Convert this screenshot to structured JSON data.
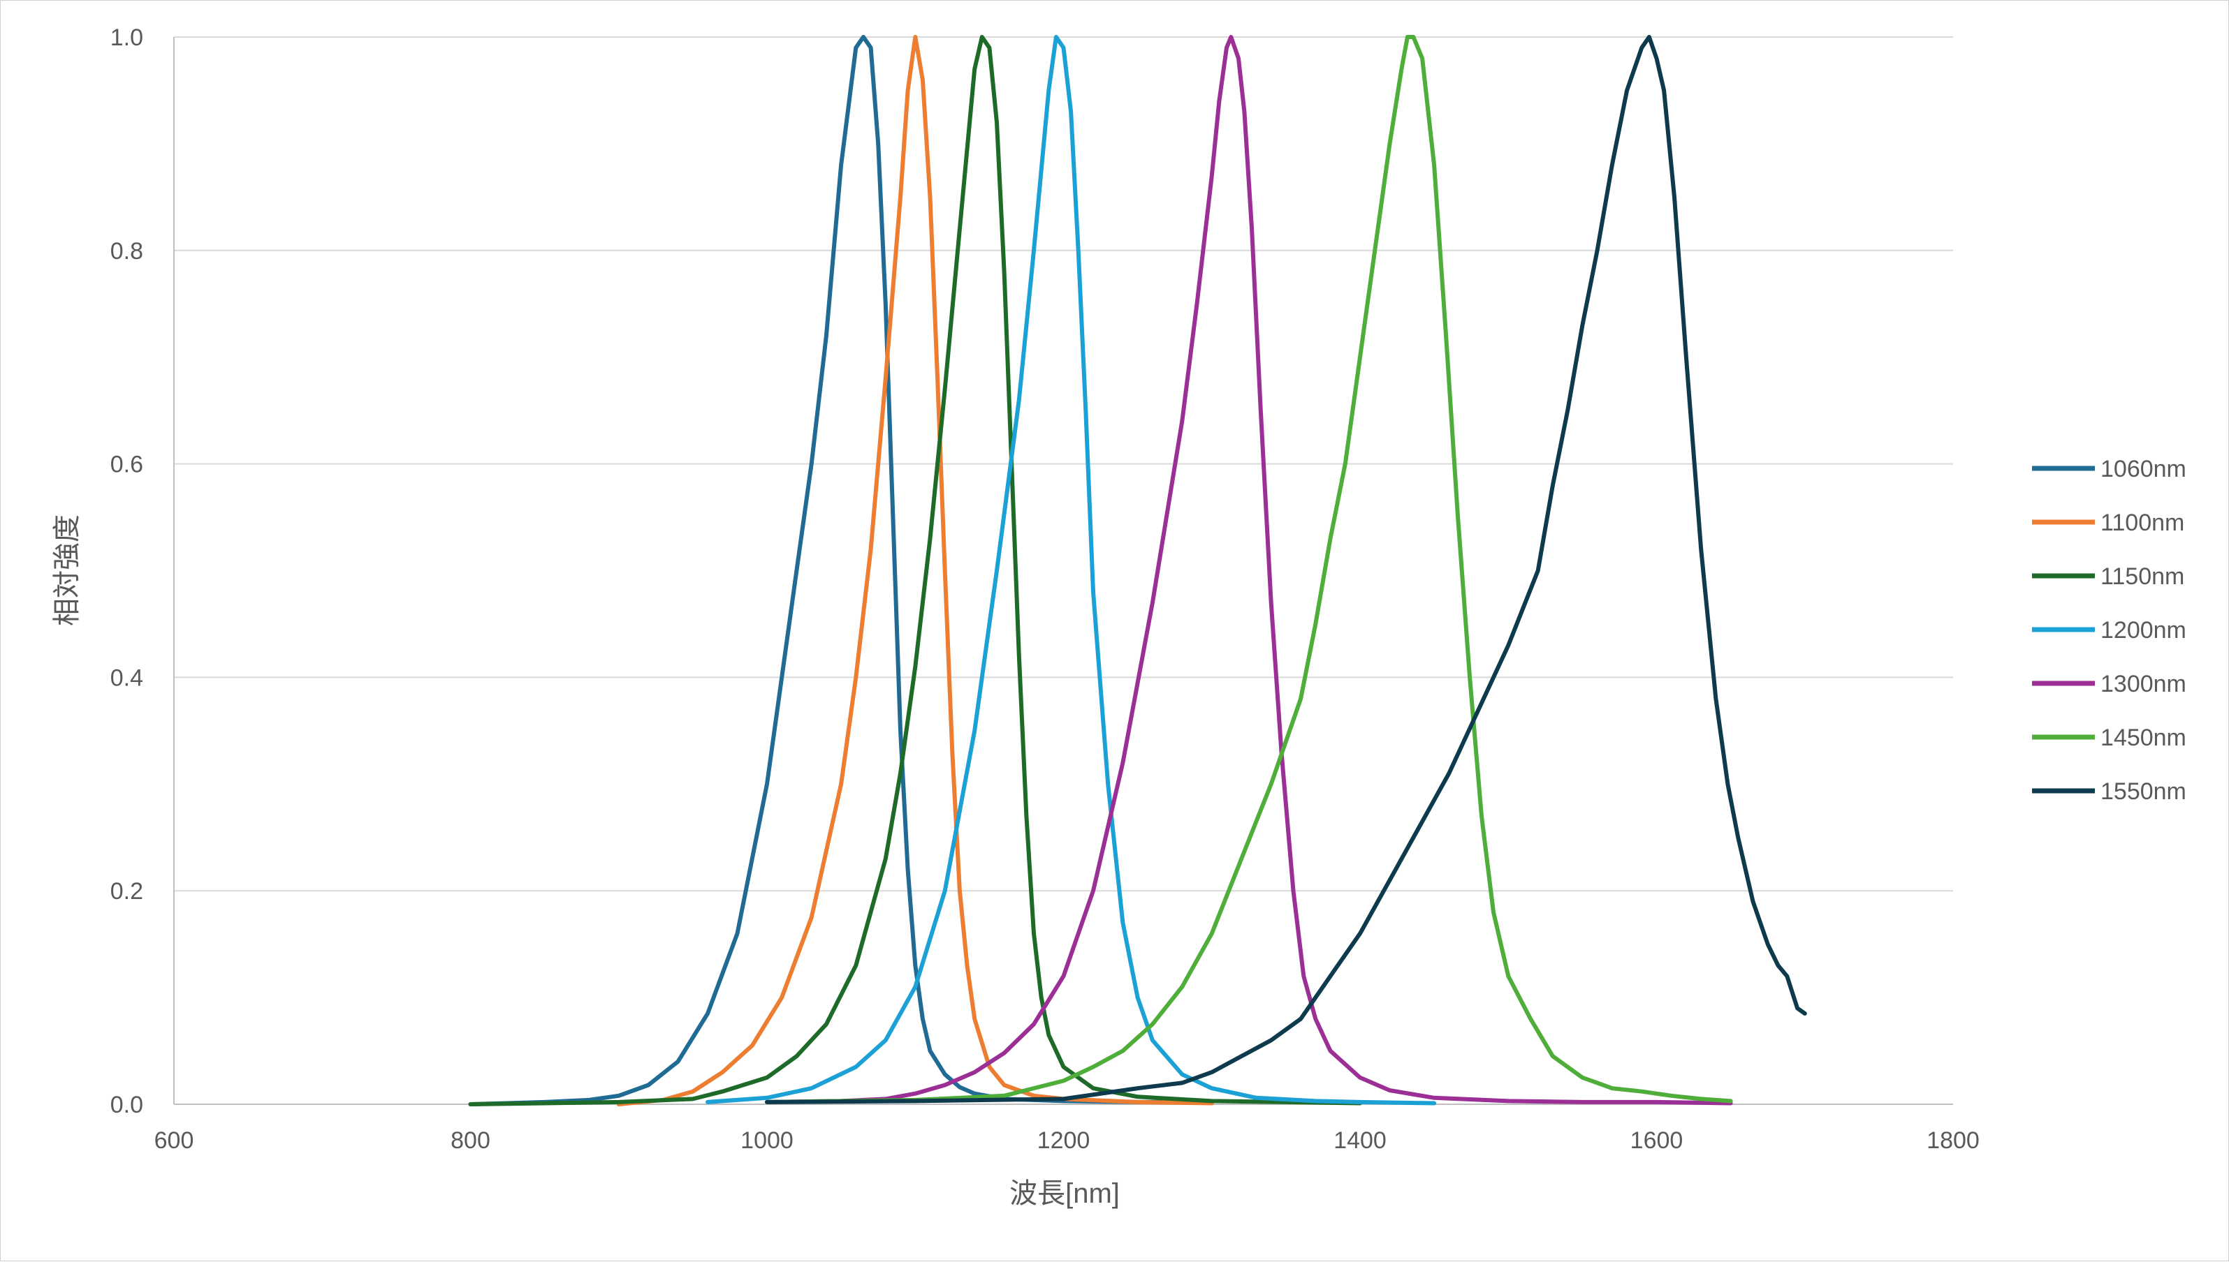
{
  "chart_data": {
    "type": "line",
    "title": "",
    "xlabel": "波長[nm]",
    "ylabel": "相対強度",
    "xlim": [
      600,
      1800
    ],
    "ylim": [
      0,
      1.0
    ],
    "xticks": [
      600,
      800,
      1000,
      1200,
      1400,
      1600,
      1800
    ],
    "yticks": [
      "0.0",
      "0.2",
      "0.4",
      "0.6",
      "0.8",
      "1.0"
    ],
    "grid": "horizontal",
    "legend_position": "right",
    "series": [
      {
        "name": "1060nm",
        "color": "#1f6b94",
        "points": [
          [
            800,
            0.0
          ],
          [
            850,
            0.002
          ],
          [
            880,
            0.004
          ],
          [
            900,
            0.008
          ],
          [
            920,
            0.018
          ],
          [
            940,
            0.04
          ],
          [
            960,
            0.085
          ],
          [
            980,
            0.16
          ],
          [
            1000,
            0.3
          ],
          [
            1010,
            0.4
          ],
          [
            1020,
            0.5
          ],
          [
            1030,
            0.6
          ],
          [
            1040,
            0.72
          ],
          [
            1050,
            0.88
          ],
          [
            1060,
            0.99
          ],
          [
            1065,
            1.0
          ],
          [
            1070,
            0.99
          ],
          [
            1075,
            0.9
          ],
          [
            1080,
            0.75
          ],
          [
            1085,
            0.55
          ],
          [
            1090,
            0.35
          ],
          [
            1095,
            0.22
          ],
          [
            1100,
            0.13
          ],
          [
            1105,
            0.08
          ],
          [
            1110,
            0.05
          ],
          [
            1120,
            0.028
          ],
          [
            1130,
            0.016
          ],
          [
            1140,
            0.01
          ],
          [
            1160,
            0.005
          ],
          [
            1200,
            0.003
          ],
          [
            1250,
            0.002
          ],
          [
            1300,
            0.002
          ]
        ]
      },
      {
        "name": "1100nm",
        "color": "#ed7d31",
        "points": [
          [
            900,
            0.0
          ],
          [
            930,
            0.004
          ],
          [
            950,
            0.012
          ],
          [
            970,
            0.03
          ],
          [
            990,
            0.055
          ],
          [
            1010,
            0.1
          ],
          [
            1030,
            0.175
          ],
          [
            1050,
            0.3
          ],
          [
            1060,
            0.4
          ],
          [
            1070,
            0.52
          ],
          [
            1080,
            0.68
          ],
          [
            1090,
            0.85
          ],
          [
            1095,
            0.95
          ],
          [
            1100,
            1.0
          ],
          [
            1105,
            0.96
          ],
          [
            1110,
            0.85
          ],
          [
            1115,
            0.68
          ],
          [
            1120,
            0.5
          ],
          [
            1125,
            0.33
          ],
          [
            1130,
            0.2
          ],
          [
            1135,
            0.13
          ],
          [
            1140,
            0.08
          ],
          [
            1150,
            0.035
          ],
          [
            1160,
            0.018
          ],
          [
            1180,
            0.008
          ],
          [
            1200,
            0.005
          ],
          [
            1250,
            0.002
          ],
          [
            1300,
            0.001
          ]
        ]
      },
      {
        "name": "1150nm",
        "color": "#1e6b29",
        "points": [
          [
            800,
            0.0
          ],
          [
            850,
            0.001
          ],
          [
            900,
            0.002
          ],
          [
            950,
            0.005
          ],
          [
            970,
            0.012
          ],
          [
            1000,
            0.025
          ],
          [
            1020,
            0.045
          ],
          [
            1040,
            0.075
          ],
          [
            1060,
            0.13
          ],
          [
            1080,
            0.23
          ],
          [
            1090,
            0.31
          ],
          [
            1100,
            0.41
          ],
          [
            1110,
            0.53
          ],
          [
            1120,
            0.67
          ],
          [
            1130,
            0.82
          ],
          [
            1140,
            0.97
          ],
          [
            1145,
            1.0
          ],
          [
            1150,
            0.99
          ],
          [
            1155,
            0.92
          ],
          [
            1160,
            0.78
          ],
          [
            1165,
            0.6
          ],
          [
            1170,
            0.42
          ],
          [
            1175,
            0.27
          ],
          [
            1180,
            0.16
          ],
          [
            1185,
            0.1
          ],
          [
            1190,
            0.065
          ],
          [
            1200,
            0.035
          ],
          [
            1220,
            0.015
          ],
          [
            1250,
            0.007
          ],
          [
            1300,
            0.003
          ],
          [
            1350,
            0.002
          ],
          [
            1400,
            0.001
          ]
        ]
      },
      {
        "name": "1200nm",
        "color": "#1ca1d6",
        "points": [
          [
            960,
            0.002
          ],
          [
            1000,
            0.006
          ],
          [
            1030,
            0.015
          ],
          [
            1060,
            0.035
          ],
          [
            1080,
            0.06
          ],
          [
            1100,
            0.11
          ],
          [
            1120,
            0.2
          ],
          [
            1140,
            0.35
          ],
          [
            1155,
            0.5
          ],
          [
            1170,
            0.66
          ],
          [
            1180,
            0.8
          ],
          [
            1190,
            0.95
          ],
          [
            1195,
            1.0
          ],
          [
            1200,
            0.99
          ],
          [
            1205,
            0.93
          ],
          [
            1210,
            0.8
          ],
          [
            1215,
            0.65
          ],
          [
            1220,
            0.48
          ],
          [
            1230,
            0.3
          ],
          [
            1240,
            0.17
          ],
          [
            1250,
            0.1
          ],
          [
            1260,
            0.06
          ],
          [
            1280,
            0.028
          ],
          [
            1300,
            0.015
          ],
          [
            1330,
            0.006
          ],
          [
            1370,
            0.003
          ],
          [
            1400,
            0.002
          ],
          [
            1450,
            0.001
          ]
        ]
      },
      {
        "name": "1300nm",
        "color": "#9b2f96",
        "points": [
          [
            1000,
            0.002
          ],
          [
            1050,
            0.003
          ],
          [
            1080,
            0.005
          ],
          [
            1100,
            0.01
          ],
          [
            1120,
            0.018
          ],
          [
            1140,
            0.03
          ],
          [
            1160,
            0.048
          ],
          [
            1180,
            0.075
          ],
          [
            1200,
            0.12
          ],
          [
            1220,
            0.2
          ],
          [
            1240,
            0.32
          ],
          [
            1260,
            0.47
          ],
          [
            1280,
            0.64
          ],
          [
            1290,
            0.75
          ],
          [
            1300,
            0.87
          ],
          [
            1305,
            0.94
          ],
          [
            1310,
            0.99
          ],
          [
            1313,
            1.0
          ],
          [
            1318,
            0.98
          ],
          [
            1322,
            0.93
          ],
          [
            1327,
            0.82
          ],
          [
            1333,
            0.65
          ],
          [
            1340,
            0.47
          ],
          [
            1347,
            0.33
          ],
          [
            1355,
            0.2
          ],
          [
            1362,
            0.12
          ],
          [
            1370,
            0.08
          ],
          [
            1380,
            0.05
          ],
          [
            1400,
            0.025
          ],
          [
            1420,
            0.013
          ],
          [
            1450,
            0.006
          ],
          [
            1500,
            0.003
          ],
          [
            1550,
            0.002
          ],
          [
            1600,
            0.002
          ],
          [
            1650,
            0.001
          ]
        ]
      },
      {
        "name": "1450nm",
        "color": "#4fad3a",
        "points": [
          [
            1000,
            0.002
          ],
          [
            1100,
            0.004
          ],
          [
            1160,
            0.008
          ],
          [
            1180,
            0.015
          ],
          [
            1200,
            0.022
          ],
          [
            1220,
            0.035
          ],
          [
            1240,
            0.05
          ],
          [
            1260,
            0.075
          ],
          [
            1280,
            0.11
          ],
          [
            1300,
            0.16
          ],
          [
            1320,
            0.23
          ],
          [
            1340,
            0.3
          ],
          [
            1360,
            0.38
          ],
          [
            1370,
            0.45
          ],
          [
            1380,
            0.53
          ],
          [
            1390,
            0.6
          ],
          [
            1400,
            0.7
          ],
          [
            1410,
            0.8
          ],
          [
            1420,
            0.9
          ],
          [
            1428,
            0.97
          ],
          [
            1432,
            1.0
          ],
          [
            1436,
            1.0
          ],
          [
            1442,
            0.98
          ],
          [
            1450,
            0.88
          ],
          [
            1458,
            0.72
          ],
          [
            1466,
            0.55
          ],
          [
            1474,
            0.4
          ],
          [
            1482,
            0.27
          ],
          [
            1490,
            0.18
          ],
          [
            1500,
            0.12
          ],
          [
            1515,
            0.08
          ],
          [
            1530,
            0.045
          ],
          [
            1550,
            0.025
          ],
          [
            1570,
            0.015
          ],
          [
            1590,
            0.012
          ],
          [
            1610,
            0.008
          ],
          [
            1630,
            0.005
          ],
          [
            1650,
            0.003
          ]
        ]
      },
      {
        "name": "1550nm",
        "color": "#0e3a4d",
        "points": [
          [
            1000,
            0.002
          ],
          [
            1100,
            0.003
          ],
          [
            1200,
            0.005
          ],
          [
            1250,
            0.015
          ],
          [
            1280,
            0.02
          ],
          [
            1300,
            0.03
          ],
          [
            1320,
            0.045
          ],
          [
            1340,
            0.06
          ],
          [
            1360,
            0.08
          ],
          [
            1380,
            0.12
          ],
          [
            1400,
            0.16
          ],
          [
            1420,
            0.21
          ],
          [
            1440,
            0.26
          ],
          [
            1460,
            0.31
          ],
          [
            1480,
            0.37
          ],
          [
            1500,
            0.43
          ],
          [
            1520,
            0.5
          ],
          [
            1530,
            0.58
          ],
          [
            1540,
            0.65
          ],
          [
            1550,
            0.73
          ],
          [
            1560,
            0.8
          ],
          [
            1570,
            0.88
          ],
          [
            1580,
            0.95
          ],
          [
            1590,
            0.99
          ],
          [
            1595,
            1.0
          ],
          [
            1600,
            0.98
          ],
          [
            1605,
            0.95
          ],
          [
            1612,
            0.85
          ],
          [
            1620,
            0.7
          ],
          [
            1630,
            0.52
          ],
          [
            1640,
            0.38
          ],
          [
            1648,
            0.3
          ],
          [
            1655,
            0.25
          ],
          [
            1665,
            0.19
          ],
          [
            1675,
            0.15
          ],
          [
            1682,
            0.13
          ],
          [
            1688,
            0.12
          ],
          [
            1695,
            0.09
          ],
          [
            1700,
            0.085
          ]
        ]
      }
    ]
  }
}
